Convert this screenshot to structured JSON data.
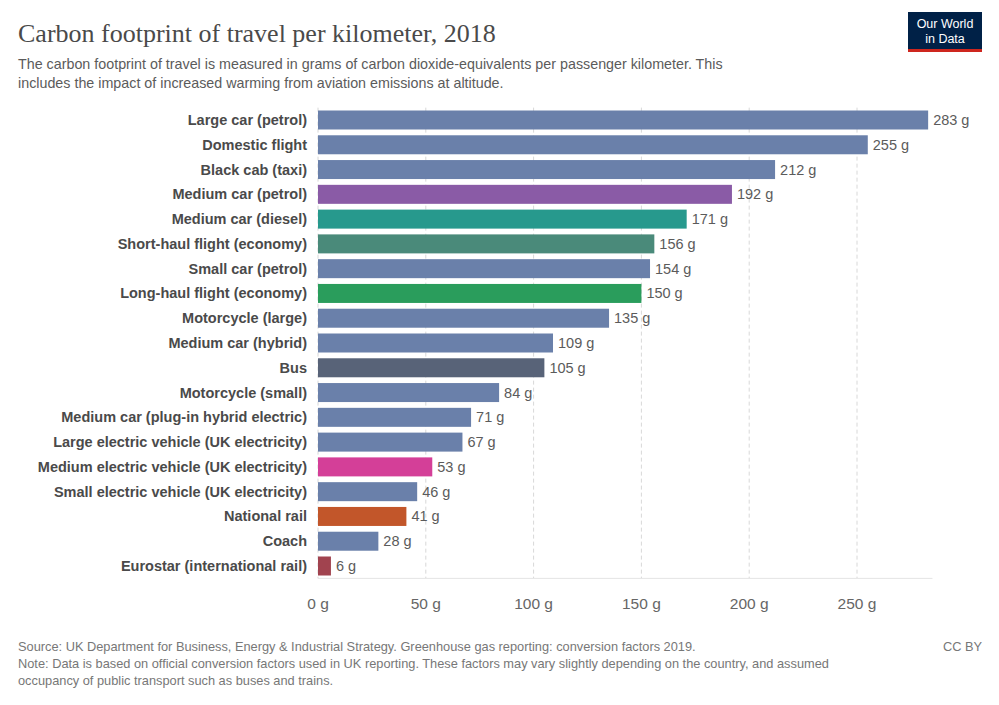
{
  "chart_data": {
    "type": "bar",
    "orientation": "horizontal",
    "title": "Carbon footprint of travel per kilometer, 2018",
    "subtitle": [
      "The carbon footprint of travel is measured in grams of carbon dioxide-equivalents per passenger kilometer. This",
      "includes the impact of increased warming from aviation emissions at altitude."
    ],
    "logo": [
      "Our World",
      "in Data"
    ],
    "source": "Source: UK Department for Business, Energy & Industrial Strategy. Greenhouse gas reporting: conversion factors 2019.",
    "license": "CC BY",
    "note": [
      "Note: Data is based on official conversion factors used in UK reporting. These factors may vary slightly depending on the country, and assumed",
      "occupancy of public transport such as buses and trains."
    ],
    "categories": [
      "Large car (petrol)",
      "Domestic flight",
      "Black cab (taxi)",
      "Medium car (petrol)",
      "Medium car (diesel)",
      "Short-haul flight (economy)",
      "Small car (petrol)",
      "Long-haul flight (economy)",
      "Motorcycle (large)",
      "Medium car (hybrid)",
      "Bus",
      "Motorcycle (small)",
      "Medium car (plug-in hybrid electric)",
      "Large electric vehicle (UK electricity)",
      "Medium electric vehicle (UK electricity)",
      "Small electric vehicle (UK electricity)",
      "National rail",
      "Coach",
      "Eurostar (international rail)"
    ],
    "values": [
      283,
      255,
      212,
      192,
      171,
      156,
      154,
      150,
      135,
      109,
      105,
      84,
      71,
      67,
      53,
      46,
      41,
      28,
      6
    ],
    "value_labels": [
      "283 g",
      "255 g",
      "212 g",
      "192 g",
      "171 g",
      "156 g",
      "154 g",
      "150 g",
      "135 g",
      "109 g",
      "105 g",
      "84 g",
      "71 g",
      "67 g",
      "53 g",
      "46 g",
      "41 g",
      "28 g",
      "6 g"
    ],
    "colors": [
      "#6a80aa",
      "#6a80aa",
      "#6a80aa",
      "#8a5ba6",
      "#27998d",
      "#4a8a7a",
      "#6a80aa",
      "#2a9d5c",
      "#6a80aa",
      "#6a80aa",
      "#586378",
      "#6a80aa",
      "#6a80aa",
      "#6a80aa",
      "#d43f98",
      "#6a80aa",
      "#c2562a",
      "#6a80aa",
      "#a1434f"
    ],
    "xlim": [
      0,
      285
    ],
    "xticks": [
      {
        "value": 0,
        "label": "0 g"
      },
      {
        "value": 50,
        "label": "50 g"
      },
      {
        "value": 100,
        "label": "100 g"
      },
      {
        "value": 150,
        "label": "150 g"
      },
      {
        "value": 200,
        "label": "200 g"
      },
      {
        "value": 250,
        "label": "250 g"
      }
    ],
    "grid": true,
    "data_labels": true
  }
}
